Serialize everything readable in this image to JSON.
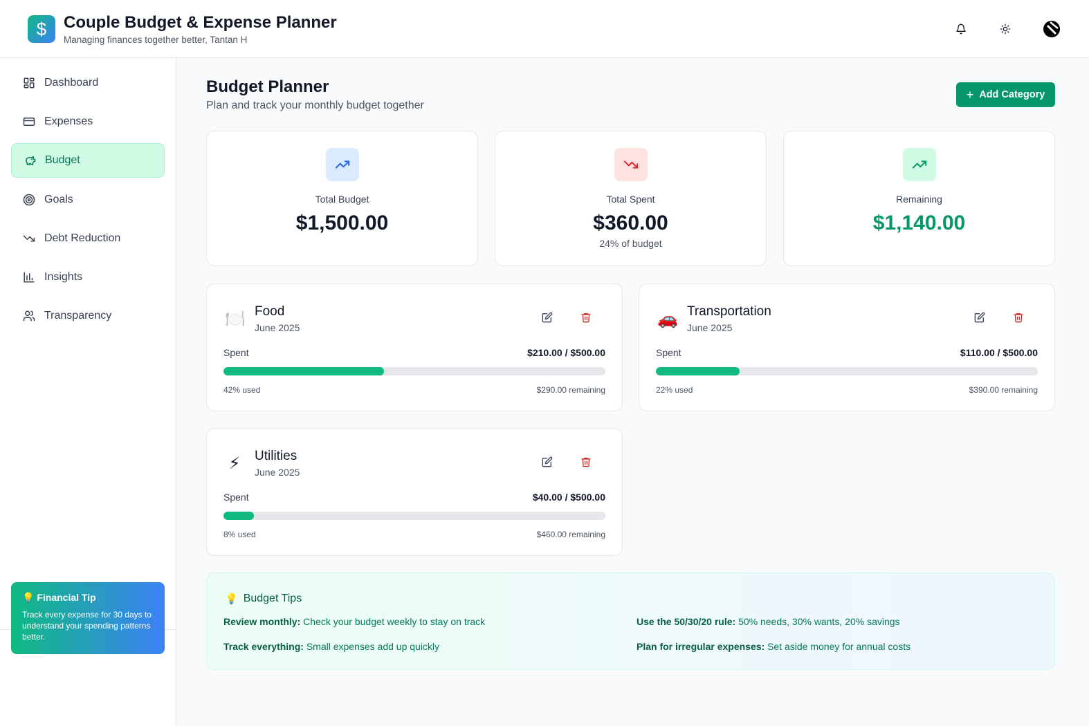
{
  "app": {
    "logo_symbol": "$",
    "title": "Couple Budget & Expense Planner",
    "subtitle": "Managing finances together better, Tantan H",
    "header_icons": [
      "bell-icon",
      "sun-icon",
      "avatar"
    ]
  },
  "sidebar": {
    "items": [
      {
        "label": "Dashboard",
        "icon": "dashboard-icon"
      },
      {
        "label": "Expenses",
        "icon": "credit-card-icon"
      },
      {
        "label": "Budget",
        "icon": "piggy-bank-icon",
        "active": true
      },
      {
        "label": "Goals",
        "icon": "target-icon"
      },
      {
        "label": "Debt Reduction",
        "icon": "trending-down-icon"
      },
      {
        "label": "Insights",
        "icon": "bar-chart-icon"
      },
      {
        "label": "Transparency",
        "icon": "users-icon"
      }
    ],
    "tip": {
      "title": "Financial Tip",
      "text": "Track every expense for 30 days to understand your spending patterns better."
    }
  },
  "main": {
    "title": "Budget Planner",
    "subtitle": "Plan and track your monthly budget together",
    "add_button": "Add Category",
    "stats": [
      {
        "label": "Total Budget",
        "value": "$1,500.00",
        "icon": "trending-up-icon",
        "color": "#2563eb"
      },
      {
        "label": "Total Spent",
        "value": "$360.00",
        "sub": "24% of budget",
        "icon": "trending-down-icon",
        "color": "#dc2626"
      },
      {
        "label": "Remaining",
        "value": "$1,140.00",
        "icon": "trending-up-icon",
        "color": "#059669"
      }
    ],
    "categories": [
      {
        "emoji": "🍽️",
        "name": "Food",
        "month": "June 2025",
        "spent_label": "Spent",
        "amount": "$210.00 / $500.00",
        "percent": 42,
        "used": "42% used",
        "remaining": "$290.00 remaining"
      },
      {
        "emoji": "🚗",
        "name": "Transportation",
        "month": "June 2025",
        "spent_label": "Spent",
        "amount": "$110.00 / $500.00",
        "percent": 22,
        "used": "22% used",
        "remaining": "$390.00 remaining"
      },
      {
        "emoji": "⚡",
        "name": "Utilities",
        "month": "June 2025",
        "spent_label": "Spent",
        "amount": "$40.00 / $500.00",
        "percent": 8,
        "used": "8% used",
        "remaining": "$460.00 remaining"
      }
    ],
    "tips": {
      "title": "Budget Tips",
      "items": [
        {
          "bold": "Review monthly:",
          "text": " Check your budget weekly to stay on track"
        },
        {
          "bold": "Use the 50/30/20 rule:",
          "text": " 50% needs, 30% wants, 20% savings"
        },
        {
          "bold": "Track everything:",
          "text": " Small expenses add up quickly"
        },
        {
          "bold": "Plan for irregular expenses:",
          "text": " Set aside money for annual costs"
        }
      ]
    }
  },
  "colors": {
    "accent": "#059669",
    "progress": "#10b981",
    "danger": "#dc2626"
  }
}
